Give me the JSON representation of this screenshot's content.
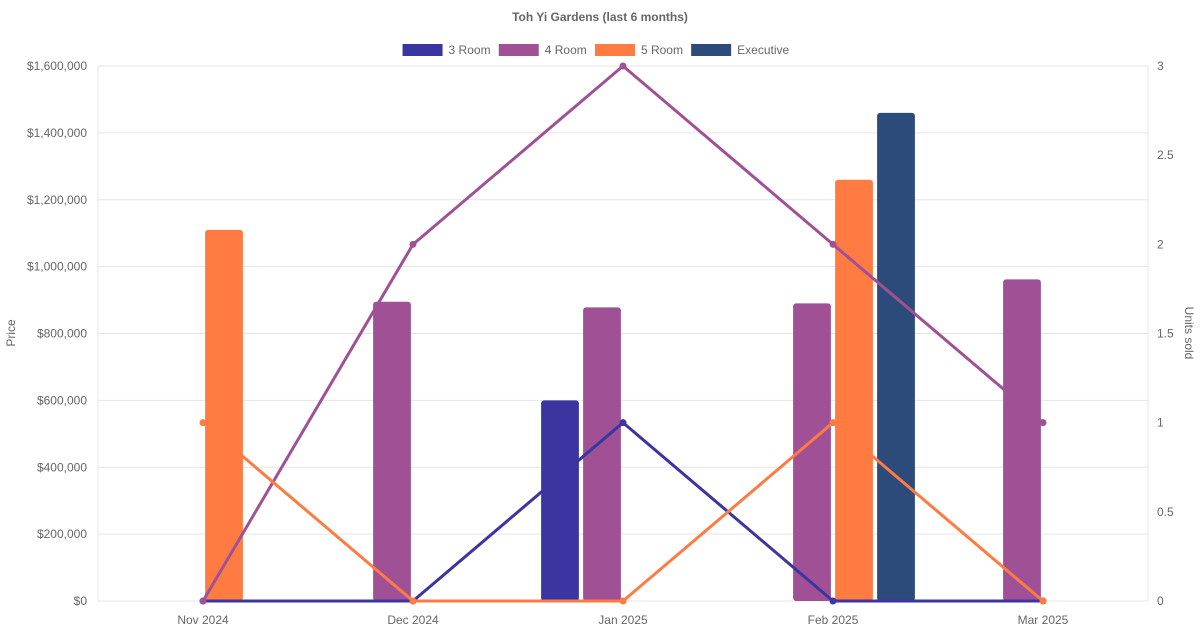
{
  "chart_data": {
    "type": "bar",
    "title": "Toh Yi Gardens (last 6 months)",
    "categories": [
      "Nov 2024",
      "Dec 2024",
      "Jan 2025",
      "Feb 2025",
      "Mar 2025"
    ],
    "ylabel": "Price",
    "y2label": "Units sold",
    "ylim": [
      0,
      1600000
    ],
    "y2lim": [
      0,
      3
    ],
    "y_ticks": [
      "$0",
      "$200,000",
      "$400,000",
      "$600,000",
      "$800,000",
      "$1,000,000",
      "$1,200,000",
      "$1,400,000",
      "$1,600,000"
    ],
    "y2_ticks": [
      "0",
      "0.5",
      "1",
      "1.5",
      "2",
      "2.5",
      "3"
    ],
    "legend_position": "top",
    "series": [
      {
        "name": "3 Room",
        "color": "#3a35a0",
        "price": [
          null,
          null,
          600000,
          null,
          null
        ],
        "units": [
          0,
          0,
          1,
          0,
          0
        ]
      },
      {
        "name": "4 Room",
        "color": "#a05196",
        "price": [
          null,
          895000,
          878000,
          890000,
          962000
        ],
        "units": [
          0,
          2,
          3,
          2,
          1
        ]
      },
      {
        "name": "5 Room",
        "color": "#ff7b41",
        "price": [
          1110000,
          null,
          null,
          1260000,
          null
        ],
        "units": [
          1,
          0,
          0,
          1,
          0
        ]
      },
      {
        "name": "Executive",
        "color": "#2d4b7a",
        "price": [
          null,
          null,
          null,
          1460000,
          null
        ],
        "units": [
          null,
          null,
          null,
          null,
          null
        ]
      }
    ]
  }
}
